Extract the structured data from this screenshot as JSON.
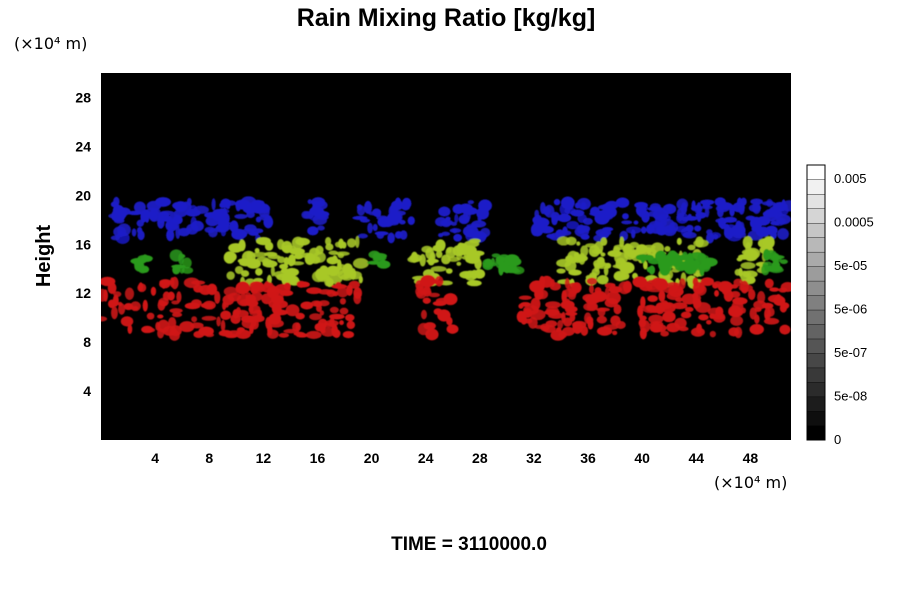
{
  "chart_data": {
    "type": "heatmap",
    "title": "Rain Mixing Ratio [kg/kg]",
    "ylabel": "Height",
    "x_units": "(×10⁴ m)",
    "y_units": "(×10⁴ m)",
    "xlim": [
      0,
      51
    ],
    "ylim": [
      0,
      30
    ],
    "x_ticks": [
      4,
      8,
      12,
      16,
      20,
      24,
      28,
      32,
      36,
      40,
      44,
      48
    ],
    "y_ticks": [
      4,
      8,
      12,
      16,
      20,
      24,
      28
    ],
    "colorbar": {
      "tick_labels": [
        "0",
        "5e-08",
        "5e-07",
        "5e-06",
        "5e-05",
        "0.0005",
        "0.005"
      ],
      "levels": 19,
      "color_low": "#000000",
      "color_high": "#ffffff"
    },
    "background_color": "#000000",
    "layers": [
      {
        "color": "#1c1cc8",
        "y_range": [
          16.5,
          19.5
        ],
        "x_extents": [
          [
            1,
            12.5
          ],
          [
            15,
            16.5
          ],
          [
            19,
            23
          ],
          [
            25,
            28.5
          ],
          [
            32,
            38
          ],
          [
            38.5,
            47.5
          ],
          [
            48,
            51
          ]
        ]
      },
      {
        "color": "#a8c828",
        "y_range": [
          12.8,
          16.3
        ],
        "x_extents": [
          [
            9.5,
            19.5
          ],
          [
            23,
            28
          ],
          [
            34,
            36
          ],
          [
            36,
            44.5
          ],
          [
            47,
            49.5
          ]
        ]
      },
      {
        "color": "#2a9a1c",
        "y_range": [
          13.8,
          15.2
        ],
        "x_extents": [
          [
            2.5,
            3.5
          ],
          [
            5.5,
            6.5
          ],
          [
            20,
            21
          ],
          [
            28.5,
            31
          ],
          [
            40,
            45
          ],
          [
            49,
            50.5
          ]
        ]
      },
      {
        "color": "#d01818",
        "y_range": [
          8.5,
          13
        ],
        "x_extents": [
          [
            0,
            19
          ],
          [
            23.5,
            26
          ],
          [
            31,
            35
          ],
          [
            34,
            39
          ],
          [
            39.5,
            51
          ]
        ]
      }
    ],
    "annotation": "TIME = 3110000.0"
  }
}
